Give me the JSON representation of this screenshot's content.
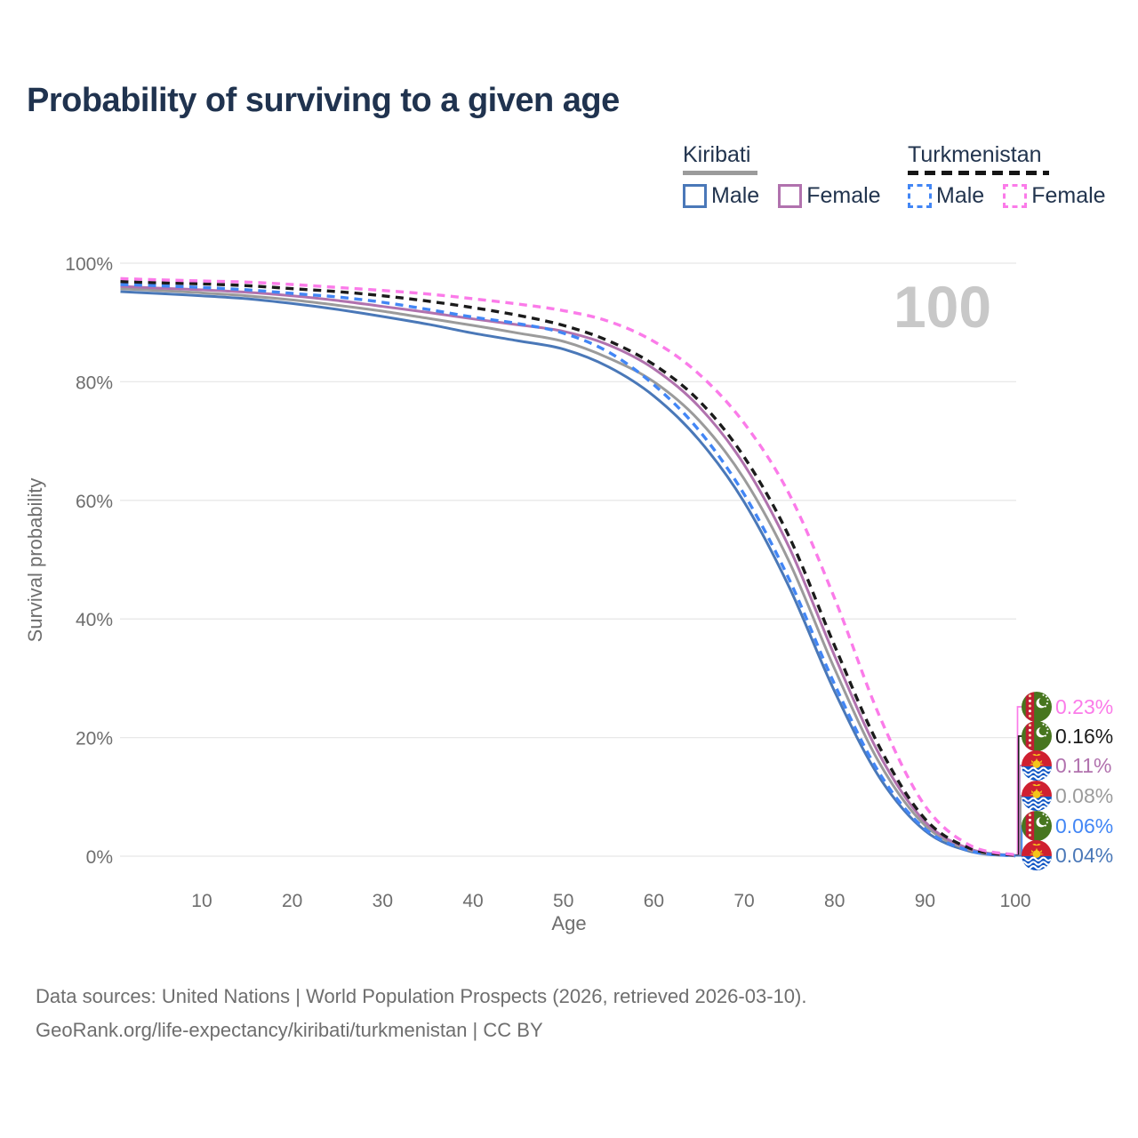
{
  "title": "Probability of surviving to a given age",
  "watermark": "100",
  "legend": {
    "groups": [
      {
        "label": "Kiribati",
        "line_style": "solid",
        "line_color": "#9b9b9b",
        "items": [
          {
            "label": "Male",
            "color": "#4a78b8",
            "dashed": false
          },
          {
            "label": "Female",
            "color": "#b172ae",
            "dashed": false
          }
        ]
      },
      {
        "label": "Turkmenistan",
        "line_style": "dashed",
        "line_color": "#151515",
        "items": [
          {
            "label": "Male",
            "color": "#4286f5",
            "dashed": true
          },
          {
            "label": "Female",
            "color": "#fb7be9",
            "dashed": true
          }
        ]
      }
    ]
  },
  "axes": {
    "x": {
      "label": "Age",
      "ticks": [
        10,
        20,
        30,
        40,
        50,
        60,
        70,
        80,
        90,
        100
      ],
      "range": [
        0,
        100
      ]
    },
    "y": {
      "label": "Survival probability",
      "ticks": [
        "0%",
        "20%",
        "40%",
        "60%",
        "80%",
        "100%"
      ],
      "tick_values": [
        0,
        20,
        40,
        60,
        80,
        100
      ],
      "range": [
        0,
        100
      ]
    }
  },
  "footer": {
    "line1": "Data sources: United Nations | World Population Prospects (2026, retrieved 2026-03-10).",
    "line2": "GeoRank.org/life-expectancy/kiribati/turkmenistan | CC BY"
  },
  "chart_data": {
    "type": "line",
    "title": "Probability of surviving to a given age",
    "xlabel": "Age",
    "ylabel": "Survival probability",
    "xlim": [
      0,
      100
    ],
    "ylim": [
      0,
      100
    ],
    "grid": "horizontal",
    "legend_position": "top-right",
    "x": [
      1,
      5,
      10,
      15,
      20,
      25,
      30,
      35,
      40,
      45,
      50,
      55,
      60,
      65,
      70,
      75,
      80,
      85,
      90,
      95,
      100
    ],
    "series": [
      {
        "id": "kiribati-male",
        "name": "Kiribati Male",
        "country": "Kiribati",
        "sex": "Male",
        "color": "#4a78b8",
        "dashed": false,
        "flag_icon": "kiribati-flag-icon",
        "end_label": "0.04%",
        "values": [
          95.2,
          94.9,
          94.5,
          94.0,
          93.2,
          92.2,
          91.0,
          89.7,
          88.2,
          86.9,
          85.5,
          82.5,
          77.6,
          70.2,
          59.7,
          45.3,
          27.8,
          13.2,
          4.3,
          0.8,
          0.04
        ]
      },
      {
        "id": "kiribati-both",
        "name": "Kiribati",
        "country": "Kiribati",
        "sex": "Both",
        "color": "#9b9b9b",
        "dashed": false,
        "flag_icon": "kiribati-flag-icon",
        "end_label": "0.08%",
        "values": [
          95.7,
          95.4,
          95.0,
          94.5,
          93.8,
          92.9,
          91.9,
          90.7,
          89.5,
          88.2,
          86.8,
          84.0,
          80.0,
          73.5,
          63.6,
          49.6,
          31.6,
          15.6,
          5.2,
          1.0,
          0.08
        ]
      },
      {
        "id": "kiribati-female",
        "name": "Kiribati Female",
        "country": "Kiribati",
        "sex": "Female",
        "color": "#b172ae",
        "dashed": false,
        "flag_icon": "kiribati-flag-icon",
        "end_label": "0.11%",
        "values": [
          96.1,
          95.8,
          95.5,
          95.1,
          94.5,
          93.7,
          92.7,
          91.7,
          90.6,
          89.6,
          88.5,
          86.2,
          82.2,
          75.8,
          66.0,
          52.0,
          33.8,
          17.0,
          5.8,
          1.2,
          0.11
        ]
      },
      {
        "id": "turkmenistan-male",
        "name": "Turkmenistan Male",
        "country": "Turkmenistan",
        "sex": "Male",
        "color": "#4286f5",
        "dashed": true,
        "flag_icon": "turkmenistan-flag-icon",
        "end_label": "0.06%",
        "values": [
          96.4,
          96.2,
          95.9,
          95.5,
          94.9,
          94.3,
          93.4,
          92.2,
          90.9,
          89.8,
          88.2,
          85.0,
          79.5,
          71.8,
          61.0,
          46.6,
          29.0,
          13.9,
          4.6,
          0.9,
          0.06
        ]
      },
      {
        "id": "turkmenistan-both",
        "name": "Turkmenistan",
        "country": "Turkmenistan",
        "sex": "Both",
        "color": "#1b1b1b",
        "dashed": true,
        "flag_icon": "turkmenistan-flag-icon",
        "end_label": "0.16%",
        "values": [
          96.9,
          96.7,
          96.5,
          96.2,
          95.7,
          95.2,
          94.5,
          93.6,
          92.5,
          91.2,
          89.5,
          86.9,
          82.9,
          76.8,
          67.3,
          53.8,
          35.5,
          18.3,
          6.3,
          1.3,
          0.16
        ]
      },
      {
        "id": "turkmenistan-female",
        "name": "Turkmenistan Female",
        "country": "Turkmenistan",
        "sex": "Female",
        "color": "#fb7be9",
        "dashed": true,
        "flag_icon": "turkmenistan-flag-icon",
        "end_label": "0.23%",
        "values": [
          97.4,
          97.2,
          97.0,
          96.8,
          96.4,
          95.9,
          95.4,
          94.8,
          94.0,
          93.1,
          92.0,
          90.2,
          86.8,
          81.3,
          73.0,
          61.0,
          43.5,
          23.5,
          8.5,
          1.8,
          0.23
        ]
      }
    ],
    "end_label_order": [
      "turkmenistan-female",
      "turkmenistan-both",
      "kiribati-female",
      "kiribati-both",
      "turkmenistan-male",
      "kiribati-male"
    ]
  }
}
